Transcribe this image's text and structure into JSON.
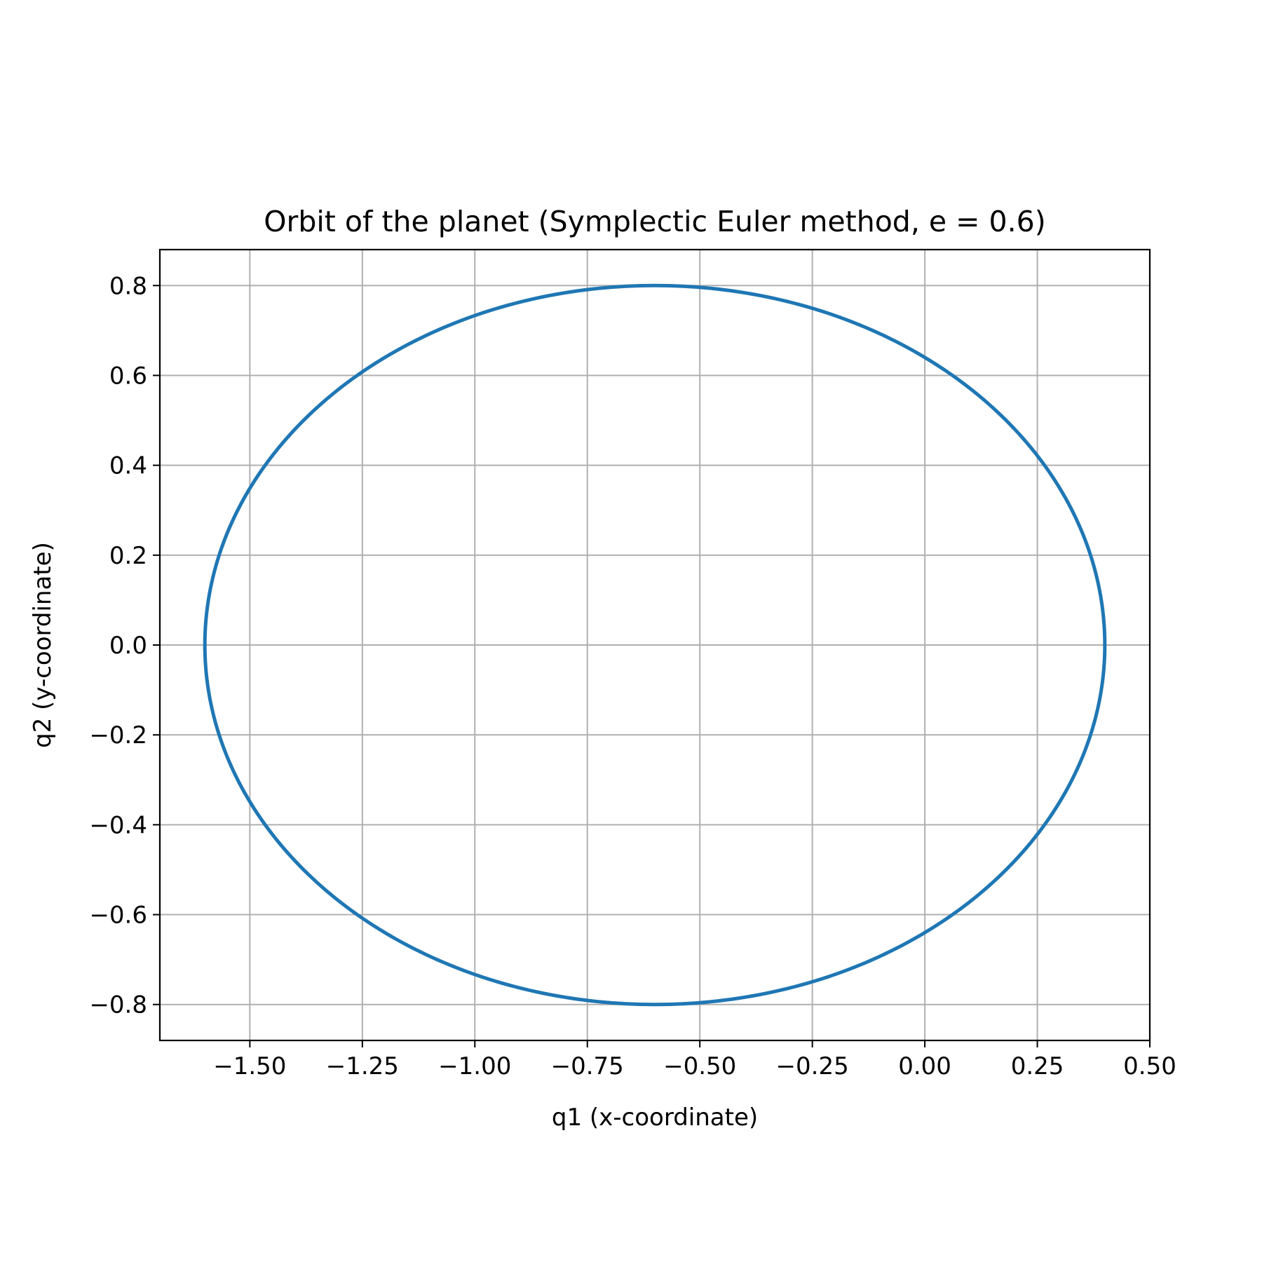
{
  "chart_data": {
    "type": "line",
    "title": "Orbit of the planet (Symplectic Euler method, e = 0.6)",
    "xlabel": "q1 (x-coordinate)",
    "ylabel": "q2 (y-coordinate)",
    "xlim": [
      -1.7,
      0.5
    ],
    "ylim": [
      -0.88,
      0.88
    ],
    "xticks": [
      -1.5,
      -1.25,
      -1.0,
      -0.75,
      -0.5,
      -0.25,
      0.0,
      0.25,
      0.5
    ],
    "xtick_labels": [
      "−1.50",
      "−1.25",
      "−1.00",
      "−0.75",
      "−0.50",
      "−0.25",
      "0.00",
      "0.25",
      "0.50"
    ],
    "yticks": [
      0.8,
      0.6,
      0.4,
      0.2,
      0.0,
      -0.2,
      -0.4,
      -0.6,
      -0.8
    ],
    "ytick_labels": [
      "0.8",
      "0.6",
      "0.4",
      "0.2",
      "0.0",
      "−0.2",
      "−0.4",
      "−0.6",
      "−0.8"
    ],
    "grid": true,
    "series": [
      {
        "color": "#1f77b4",
        "orbit": {
          "center_x": -0.6,
          "center_y": 0.0,
          "semi_major": 1.0,
          "semi_minor": 0.8
        },
        "x": [
          0.4,
          0.37,
          0.28,
          0.1,
          -0.1,
          -0.35,
          -0.6,
          -0.85,
          -1.1,
          -1.35,
          -1.52,
          -1.6,
          -1.52,
          -1.35,
          -1.1,
          -0.85,
          -0.6,
          -0.35,
          -0.1,
          0.1,
          0.28,
          0.37,
          0.4
        ],
        "y": [
          0.0,
          0.2,
          0.4,
          0.57,
          0.69,
          0.77,
          0.8,
          0.77,
          0.69,
          0.53,
          0.3,
          0.0,
          -0.3,
          -0.53,
          -0.69,
          -0.77,
          -0.8,
          -0.77,
          -0.69,
          -0.57,
          -0.4,
          -0.2,
          0.0
        ]
      }
    ]
  }
}
